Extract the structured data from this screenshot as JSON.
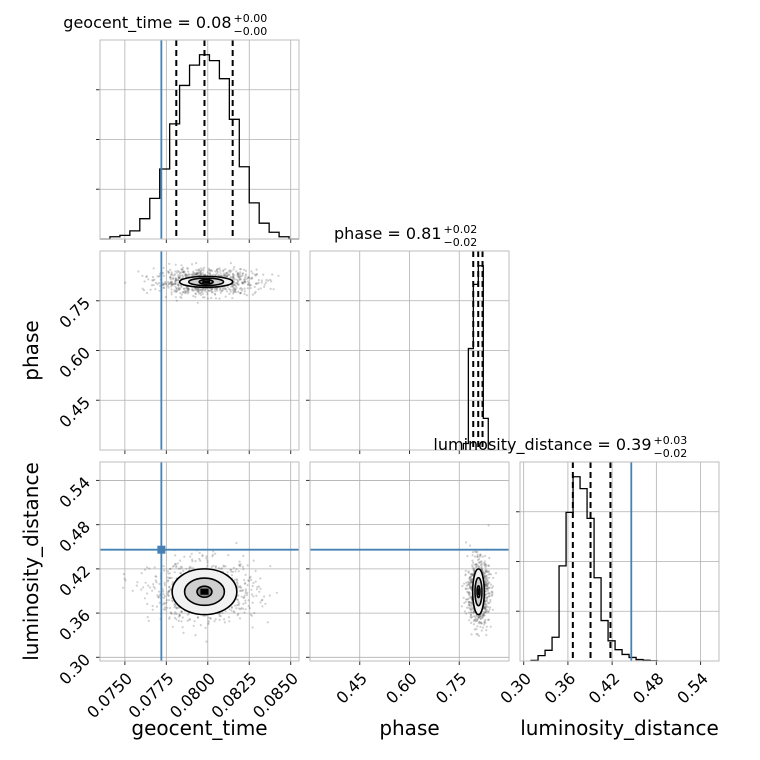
{
  "chart_data": {
    "type": "corner",
    "parameters": [
      {
        "name": "geocent_time",
        "label": "geocent_time",
        "median": 0.08,
        "err_plus": 0.0,
        "err_minus": 0.0,
        "title_main": "geocent_time = 0.08",
        "title_sup": "+0.00",
        "title_sub": "−0.00",
        "range": [
          0.0735,
          0.0855
        ],
        "ticks": [
          0.075,
          0.0775,
          0.08,
          0.0825,
          0.085
        ],
        "tick_labels": [
          "0.0750",
          "0.0775",
          "0.0800",
          "0.0825",
          "0.0850"
        ],
        "truth": 0.0772,
        "quantiles": [
          0.0781,
          0.0798,
          0.0815
        ],
        "hist_edges": [
          0.0735,
          0.0741,
          0.0747,
          0.0753,
          0.0759,
          0.0765,
          0.0771,
          0.0777,
          0.0783,
          0.0789,
          0.0795,
          0.0801,
          0.0807,
          0.0813,
          0.0819,
          0.0825,
          0.0831,
          0.0837,
          0.0843,
          0.0849,
          0.0855
        ],
        "hist_counts": [
          0,
          5,
          8,
          18,
          45,
          90,
          155,
          255,
          340,
          385,
          408,
          395,
          355,
          265,
          160,
          80,
          35,
          15,
          5,
          0
        ]
      },
      {
        "name": "phase",
        "label": "phase",
        "median": 0.81,
        "err_plus": 0.02,
        "err_minus": 0.02,
        "title_main": "phase = 0.81",
        "title_sup": "+0.02",
        "title_sub": "−0.02",
        "range": [
          0.3,
          0.9
        ],
        "ticks": [
          0.45,
          0.6,
          0.75
        ],
        "tick_labels": [
          "0.45",
          "0.60",
          "0.75"
        ],
        "truth": null,
        "quantiles": [
          0.7922,
          0.8072,
          0.8202
        ],
        "hist_edges": [
          0.7625,
          0.7775,
          0.7925,
          0.8075,
          0.8225,
          0.8375
        ],
        "hist_counts": [
          35,
          545,
          890,
          990,
          170
        ]
      },
      {
        "name": "luminosity_distance",
        "label": "luminosity_distance",
        "median": 0.39,
        "err_plus": 0.03,
        "err_minus": 0.02,
        "title_main": "luminosity_distance = 0.39",
        "title_sup": "+0.03",
        "title_sub": "−0.02",
        "range": [
          0.295,
          0.565
        ],
        "ticks": [
          0.3,
          0.36,
          0.42,
          0.48,
          0.54
        ],
        "tick_labels": [
          "0.30",
          "0.36",
          "0.42",
          "0.48",
          "0.54"
        ],
        "truth": 0.446,
        "quantiles": [
          0.3667,
          0.3907,
          0.4177
        ],
        "hist_edges": [
          0.31,
          0.3195,
          0.329,
          0.3385,
          0.348,
          0.3575,
          0.367,
          0.3765,
          0.386,
          0.3955,
          0.405,
          0.4145,
          0.424,
          0.4335,
          0.443,
          0.4525,
          0.462,
          0.4715,
          0.481
        ],
        "hist_counts": [
          5,
          45,
          90,
          200,
          800,
          1250,
          1550,
          1450,
          1200,
          700,
          340,
          170,
          95,
          55,
          30,
          12,
          6,
          2
        ]
      }
    ],
    "pairs": [
      {
        "x": "geocent_time",
        "y": "phase",
        "center": [
          0.0799,
          0.807
        ],
        "spread": [
          0.0015,
          0.019
        ],
        "contour_radii": [
          [
            0.00042,
            0.0068
          ],
          [
            0.00105,
            0.0112
          ],
          [
            0.0016,
            0.0165
          ]
        ]
      },
      {
        "x": "geocent_time",
        "y": "luminosity_distance",
        "center": [
          0.0798,
          0.389
        ],
        "spread": [
          0.0016,
          0.02
        ],
        "contour_radii": [
          [
            0.00045,
            0.0075
          ],
          [
            0.0012,
            0.0185
          ],
          [
            0.00195,
            0.031
          ]
        ]
      },
      {
        "x": "phase",
        "y": "luminosity_distance",
        "center": [
          0.808,
          0.389
        ],
        "spread": [
          0.016,
          0.021
        ],
        "contour_radii": [
          [
            0.0045,
            0.008
          ],
          [
            0.0105,
            0.019
          ],
          [
            0.0175,
            0.031
          ]
        ]
      }
    ],
    "colors": {
      "truth": "#4682b4",
      "samples": "#555555",
      "contours": "#000000"
    }
  }
}
